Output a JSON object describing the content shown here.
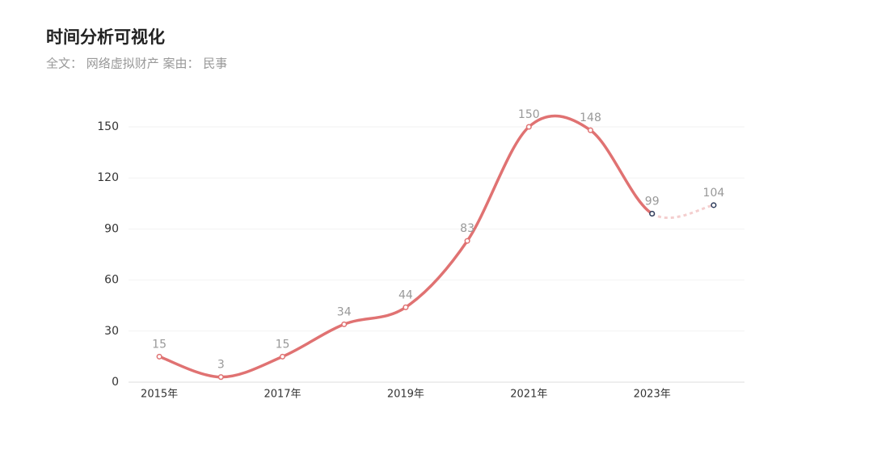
{
  "chart_data": {
    "type": "line",
    "title": "时间分析可视化",
    "subtitle": "全文： 网络虚拟财产   案由： 民事",
    "categories": [
      "2015年",
      null,
      "2017年",
      null,
      "2019年",
      null,
      "2021年",
      null,
      "2023年",
      null
    ],
    "values": [
      15,
      3,
      15,
      34,
      44,
      83,
      150,
      148,
      99,
      104
    ],
    "color": "#e07272",
    "highlight_color": "#2f3d5c",
    "dashed_from_index": 8,
    "ylim": [
      0,
      150
    ],
    "yticks": [
      0,
      30,
      60,
      90,
      120,
      150
    ],
    "grid": true
  }
}
